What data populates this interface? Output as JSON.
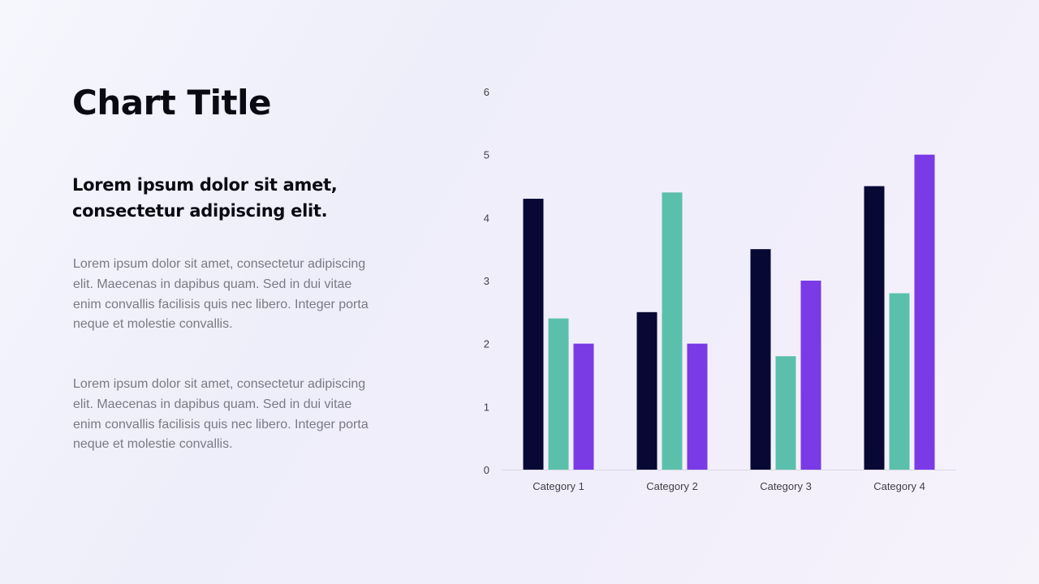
{
  "slide": {
    "title": "Chart Title",
    "subtitle": "Lorem ipsum dolor sit amet, consectetur adipiscing elit.",
    "paragraphs": [
      "Lorem ipsum dolor sit amet, consectetur adipiscing elit. Maecenas in dapibus quam. Sed in dui vitae enim convallis facilisis quis nec libero. Integer porta neque et molestie convallis.",
      "Lorem ipsum dolor sit amet, consectetur adipiscing elit. Maecenas in dapibus quam. Sed in dui vitae enim convallis facilisis quis nec libero. Integer porta neque et molestie convallis."
    ]
  },
  "chart_data": {
    "type": "bar",
    "categories": [
      "Category 1",
      "Category 2",
      "Category 3",
      "Category 4"
    ],
    "series": [
      {
        "values": [
          4.3,
          2.5,
          3.5,
          4.5
        ],
        "color": "#070833"
      },
      {
        "values": [
          2.4,
          4.4,
          1.8,
          2.8
        ],
        "color": "#5bc0ab"
      },
      {
        "values": [
          2.0,
          2.0,
          3.0,
          5.0
        ],
        "color": "#7a3ae6"
      }
    ],
    "ylim": [
      0,
      6
    ],
    "yticks": [
      0,
      1,
      2,
      3,
      4,
      5,
      6
    ],
    "grid": false,
    "legend": "none",
    "title": "",
    "xlabel": "",
    "ylabel": ""
  }
}
